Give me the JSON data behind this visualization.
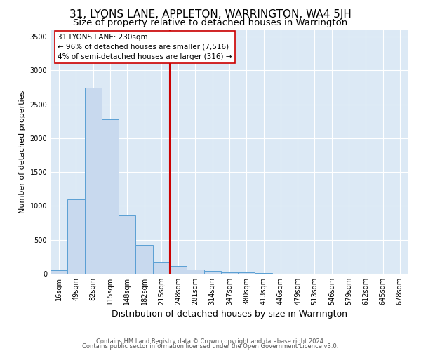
{
  "title": "31, LYONS LANE, APPLETON, WARRINGTON, WA4 5JH",
  "subtitle": "Size of property relative to detached houses in Warrington",
  "xlabel": "Distribution of detached houses by size in Warrington",
  "ylabel": "Number of detached properties",
  "categories": [
    "16sqm",
    "49sqm",
    "82sqm",
    "115sqm",
    "148sqm",
    "182sqm",
    "215sqm",
    "248sqm",
    "281sqm",
    "314sqm",
    "347sqm",
    "380sqm",
    "413sqm",
    "446sqm",
    "479sqm",
    "513sqm",
    "546sqm",
    "579sqm",
    "612sqm",
    "645sqm",
    "678sqm"
  ],
  "values": [
    50,
    1100,
    2750,
    2280,
    875,
    420,
    175,
    110,
    65,
    40,
    25,
    20,
    10,
    5,
    3,
    2,
    1,
    1,
    0,
    0,
    0
  ],
  "bar_color": "#c8d9ee",
  "bar_edge_color": "#5a9fd4",
  "vline_x_pos": 6.5,
  "vline_color": "#cc0000",
  "annotation_title": "31 LYONS LANE: 230sqm",
  "annotation_line1": "← 96% of detached houses are smaller (7,516)",
  "annotation_line2": "4% of semi-detached houses are larger (316) →",
  "ylim": [
    0,
    3600
  ],
  "yticks": [
    0,
    500,
    1000,
    1500,
    2000,
    2500,
    3000,
    3500
  ],
  "footnote1": "Contains HM Land Registry data © Crown copyright and database right 2024.",
  "footnote2": "Contains public sector information licensed under the Open Government Licence v3.0.",
  "bg_color": "#dce9f5",
  "grid_color": "#ffffff",
  "title_fontsize": 11,
  "subtitle_fontsize": 9.5,
  "xlabel_fontsize": 9,
  "ylabel_fontsize": 8,
  "tick_fontsize": 7,
  "annot_fontsize": 7.5,
  "footnote_fontsize": 6
}
